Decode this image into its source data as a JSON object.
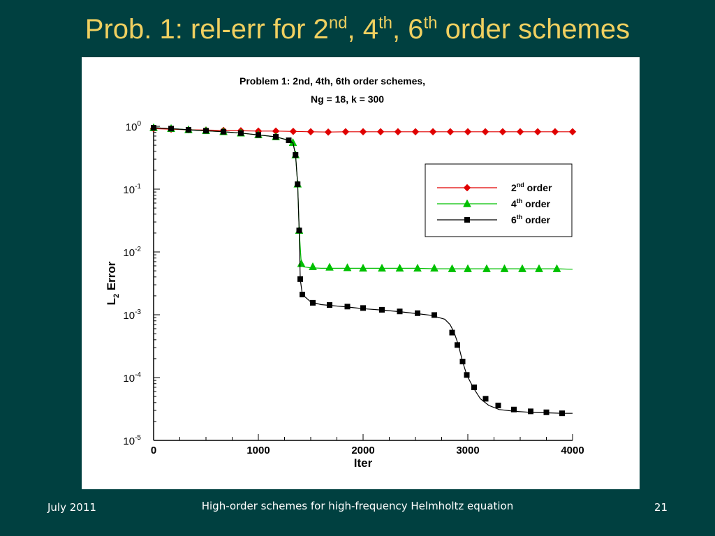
{
  "slide": {
    "title_prefix": "Prob. 1: rel-err for 2",
    "sup1": "nd",
    "mid1": ", 4",
    "sup2": "th",
    "mid2": ", 6",
    "sup3": "th",
    "title_suffix": " order schemes"
  },
  "footer": {
    "date": "July 2011",
    "center": "High-order schemes for high-frequency Helmholtz equation",
    "page": "21"
  },
  "chart_data": {
    "type": "line",
    "title_line1": "Problem 1:   2nd,  4th,  6th order schemes,",
    "title_line2": "Ng = 18,  k = 300",
    "xlabel": "Iter",
    "ylabel": "L2 Error",
    "xlim": [
      0,
      4000
    ],
    "ylim": [
      1e-05,
      1
    ],
    "yscale": "log",
    "x_ticks": [
      0,
      1000,
      2000,
      3000,
      4000
    ],
    "y_ticks": [
      {
        "value": 1,
        "base": "10",
        "exp": "0"
      },
      {
        "value": 0.1,
        "base": "10",
        "exp": "-1"
      },
      {
        "value": 0.01,
        "base": "10",
        "exp": "-2"
      },
      {
        "value": 0.001,
        "base": "10",
        "exp": "-3"
      },
      {
        "value": 0.0001,
        "base": "10",
        "exp": "-4"
      },
      {
        "value": 1e-05,
        "base": "10",
        "exp": "-5"
      }
    ],
    "legend_position": "top-right",
    "series": [
      {
        "name": "2nd order",
        "name_base": "2",
        "name_sup": "nd",
        "name_rest": " order",
        "color": "#e00000",
        "marker": "diamond",
        "x": [
          0,
          167,
          333,
          500,
          667,
          833,
          1000,
          1167,
          1333,
          1500,
          1667,
          1833,
          2000,
          2167,
          2333,
          2500,
          2667,
          2833,
          3000,
          3167,
          3333,
          3500,
          3667,
          3833,
          4000
        ],
        "y": [
          0.92,
          0.9,
          0.88,
          0.87,
          0.86,
          0.85,
          0.84,
          0.84,
          0.83,
          0.82,
          0.81,
          0.82,
          0.82,
          0.82,
          0.82,
          0.82,
          0.82,
          0.82,
          0.82,
          0.82,
          0.82,
          0.82,
          0.82,
          0.82,
          0.82
        ]
      },
      {
        "name": "4th order",
        "name_base": "4",
        "name_sup": "th",
        "name_rest": " order",
        "color": "#00c000",
        "marker": "triangle",
        "x": [
          0,
          167,
          333,
          500,
          667,
          833,
          1000,
          1167,
          1290,
          1330,
          1355,
          1375,
          1390,
          1410,
          1430,
          1500,
          1600,
          1700,
          1850,
          2000,
          2200,
          2350,
          2500,
          2700,
          2850,
          3000,
          3200,
          3350,
          3500,
          3700,
          3850,
          4000
        ],
        "y": [
          0.95,
          0.92,
          0.88,
          0.85,
          0.82,
          0.78,
          0.73,
          0.68,
          0.6,
          0.55,
          0.35,
          0.12,
          0.022,
          0.0065,
          0.0058,
          0.0056,
          0.0055,
          0.0055,
          0.0055,
          0.0055,
          0.0055,
          0.0055,
          0.0055,
          0.0054,
          0.0054,
          0.0054,
          0.0054,
          0.0054,
          0.0054,
          0.0054,
          0.0054,
          0.0053
        ],
        "markers_x": [
          0,
          167,
          333,
          500,
          667,
          833,
          1000,
          1167,
          1330,
          1355,
          1375,
          1390,
          1410,
          1520,
          1680,
          1850,
          2000,
          2180,
          2350,
          2520,
          2680,
          2850,
          3000,
          3180,
          3350,
          3520,
          3680,
          3850
        ],
        "markers_y": [
          0.95,
          0.92,
          0.88,
          0.85,
          0.82,
          0.78,
          0.73,
          0.68,
          0.55,
          0.35,
          0.12,
          0.022,
          0.0065,
          0.0058,
          0.0057,
          0.0056,
          0.0055,
          0.0055,
          0.0055,
          0.0055,
          0.0055,
          0.0054,
          0.0054,
          0.0054,
          0.0054,
          0.0054,
          0.0054,
          0.0054
        ]
      },
      {
        "name": "6th order",
        "name_base": "6",
        "name_sup": "th",
        "name_rest": " order",
        "color": "#000000",
        "marker": "square",
        "x": [
          0,
          167,
          333,
          500,
          667,
          833,
          1000,
          1167,
          1290,
          1330,
          1355,
          1375,
          1390,
          1400,
          1420,
          1500,
          1600,
          1700,
          1850,
          2000,
          2200,
          2350,
          2500,
          2650,
          2780,
          2830,
          2870,
          2910,
          2950,
          2990,
          3050,
          3120,
          3200,
          3300,
          3450,
          3600,
          3750,
          3900,
          4000
        ],
        "y": [
          0.95,
          0.92,
          0.88,
          0.85,
          0.82,
          0.78,
          0.73,
          0.68,
          0.6,
          0.55,
          0.35,
          0.12,
          0.022,
          0.0037,
          0.0021,
          0.0016,
          0.00145,
          0.0014,
          0.00133,
          0.00125,
          0.00118,
          0.00112,
          0.00105,
          0.00098,
          0.00085,
          0.0007,
          0.00052,
          0.00033,
          0.00018,
          0.00011,
          7e-05,
          4.6e-05,
          3.6e-05,
          3.1e-05,
          2.9e-05,
          2.8e-05,
          2.75e-05,
          2.7e-05,
          2.7e-05
        ],
        "markers_x": [
          0,
          167,
          333,
          500,
          667,
          833,
          1000,
          1167,
          1290,
          1355,
          1375,
          1390,
          1400,
          1420,
          1520,
          1680,
          1850,
          2000,
          2180,
          2350,
          2520,
          2680,
          2850,
          2900,
          2950,
          2990,
          3060,
          3170,
          3290,
          3440,
          3600,
          3750,
          3900
        ],
        "markers_y": [
          0.95,
          0.92,
          0.88,
          0.85,
          0.82,
          0.78,
          0.73,
          0.68,
          0.6,
          0.35,
          0.12,
          0.022,
          0.0037,
          0.0021,
          0.00155,
          0.00143,
          0.00135,
          0.00128,
          0.0012,
          0.00113,
          0.00106,
          0.00099,
          0.00052,
          0.00033,
          0.00018,
          0.00011,
          7e-05,
          4.6e-05,
          3.6e-05,
          3.1e-05,
          2.9e-05,
          2.8e-05,
          2.7e-05
        ]
      }
    ]
  }
}
